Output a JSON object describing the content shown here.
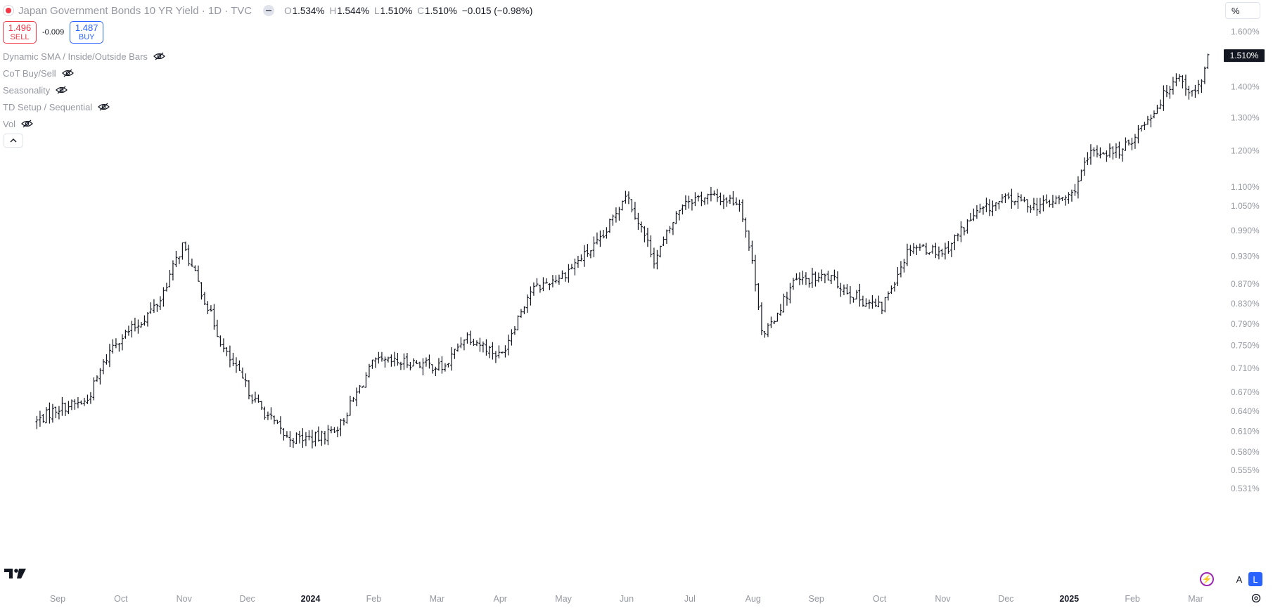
{
  "header": {
    "title": "Japan Government Bonds 10 YR Yield · 1D · TVC",
    "ohlc": [
      {
        "key": "O",
        "value": "1.534%"
      },
      {
        "key": "H",
        "value": "1.544%"
      },
      {
        "key": "L",
        "value": "1.510%"
      },
      {
        "key": "C",
        "value": "1.510%"
      }
    ],
    "change": "−0.015 (−0.98%)",
    "status_dot_color": "#f23645"
  },
  "trade": {
    "sell_price": "1.496",
    "sell_label": "SELL",
    "spread": "-0.009",
    "buy_price": "1.487",
    "buy_label": "BUY",
    "sell_color": "#f23645",
    "buy_color": "#2962ff"
  },
  "indicators": [
    {
      "label": "Dynamic SMA / Inside/Outside Bars",
      "icon": "eye-crossed-icon"
    },
    {
      "label": "CoT Buy/Sell",
      "icon": "eye-crossed-icon"
    },
    {
      "label": "Seasonality",
      "icon": "eye-crossed-icon"
    },
    {
      "label": "TD Setup / Sequential",
      "icon": "eye-crossed-icon"
    },
    {
      "label": "Vol",
      "icon": "eye-crossed-icon"
    }
  ],
  "scale_unit": "%",
  "scale_buttons": {
    "auto": "A",
    "log": "L"
  },
  "chart_data": {
    "type": "ohlc",
    "symbol": "Japan Government Bonds 10 YR Yield",
    "interval": "1D",
    "y_scale": "log",
    "y_ticks": [
      "1.600%",
      "1.400%",
      "1.300%",
      "1.200%",
      "1.100%",
      "1.050%",
      "0.990%",
      "0.930%",
      "0.870%",
      "0.830%",
      "0.790%",
      "0.750%",
      "0.710%",
      "0.670%",
      "0.640%",
      "0.610%",
      "0.580%",
      "0.555%",
      "0.531%"
    ],
    "x_ticks": [
      {
        "label": "Sep",
        "bold": false
      },
      {
        "label": "Oct",
        "bold": false
      },
      {
        "label": "Nov",
        "bold": false
      },
      {
        "label": "Dec",
        "bold": false
      },
      {
        "label": "2024",
        "bold": true
      },
      {
        "label": "Feb",
        "bold": false
      },
      {
        "label": "Mar",
        "bold": false
      },
      {
        "label": "Apr",
        "bold": false
      },
      {
        "label": "May",
        "bold": false
      },
      {
        "label": "Jun",
        "bold": false
      },
      {
        "label": "Jul",
        "bold": false
      },
      {
        "label": "Aug",
        "bold": false
      },
      {
        "label": "Sep",
        "bold": false
      },
      {
        "label": "Oct",
        "bold": false
      },
      {
        "label": "Nov",
        "bold": false
      },
      {
        "label": "Dec",
        "bold": false
      },
      {
        "label": "2025",
        "bold": true
      },
      {
        "label": "Feb",
        "bold": false
      },
      {
        "label": "Mar",
        "bold": false
      }
    ],
    "last_price": "1.510%",
    "bar_color": "#131722",
    "close_path": [
      {
        "date": "2023-08-22",
        "close": 0.625
      },
      {
        "date": "2023-09-01",
        "close": 0.645
      },
      {
        "date": "2023-09-15",
        "close": 0.655
      },
      {
        "date": "2023-09-28",
        "close": 0.755
      },
      {
        "date": "2023-10-10",
        "close": 0.79
      },
      {
        "date": "2023-10-20",
        "close": 0.835
      },
      {
        "date": "2023-10-31",
        "close": 0.955
      },
      {
        "date": "2023-11-10",
        "close": 0.845
      },
      {
        "date": "2023-11-20",
        "close": 0.74
      },
      {
        "date": "2023-12-05",
        "close": 0.655
      },
      {
        "date": "2023-12-20",
        "close": 0.6
      },
      {
        "date": "2024-01-05",
        "close": 0.6
      },
      {
        "date": "2024-01-15",
        "close": 0.62
      },
      {
        "date": "2024-01-31",
        "close": 0.72
      },
      {
        "date": "2024-02-20",
        "close": 0.72
      },
      {
        "date": "2024-03-05",
        "close": 0.71
      },
      {
        "date": "2024-03-15",
        "close": 0.77
      },
      {
        "date": "2024-04-01",
        "close": 0.73
      },
      {
        "date": "2024-04-15",
        "close": 0.855
      },
      {
        "date": "2024-05-01",
        "close": 0.89
      },
      {
        "date": "2024-05-20",
        "close": 0.97
      },
      {
        "date": "2024-05-31",
        "close": 1.085
      },
      {
        "date": "2024-06-14",
        "close": 0.92
      },
      {
        "date": "2024-06-28",
        "close": 1.065
      },
      {
        "date": "2024-07-10",
        "close": 1.075
      },
      {
        "date": "2024-07-25",
        "close": 1.06
      },
      {
        "date": "2024-08-02",
        "close": 0.86
      },
      {
        "date": "2024-08-05",
        "close": 0.76
      },
      {
        "date": "2024-08-20",
        "close": 0.875
      },
      {
        "date": "2024-09-05",
        "close": 0.885
      },
      {
        "date": "2024-09-20",
        "close": 0.84
      },
      {
        "date": "2024-10-01",
        "close": 0.82
      },
      {
        "date": "2024-10-15",
        "close": 0.955
      },
      {
        "date": "2024-10-31",
        "close": 0.94
      },
      {
        "date": "2024-11-15",
        "close": 1.03
      },
      {
        "date": "2024-12-01",
        "close": 1.07
      },
      {
        "date": "2024-12-15",
        "close": 1.05
      },
      {
        "date": "2024-12-31",
        "close": 1.075
      },
      {
        "date": "2025-01-10",
        "close": 1.195
      },
      {
        "date": "2025-01-25",
        "close": 1.2
      },
      {
        "date": "2025-02-10",
        "close": 1.33
      },
      {
        "date": "2025-02-20",
        "close": 1.445
      },
      {
        "date": "2025-02-28",
        "close": 1.37
      },
      {
        "date": "2025-03-05",
        "close": 1.44
      },
      {
        "date": "2025-03-07",
        "close": 1.51
      }
    ]
  }
}
